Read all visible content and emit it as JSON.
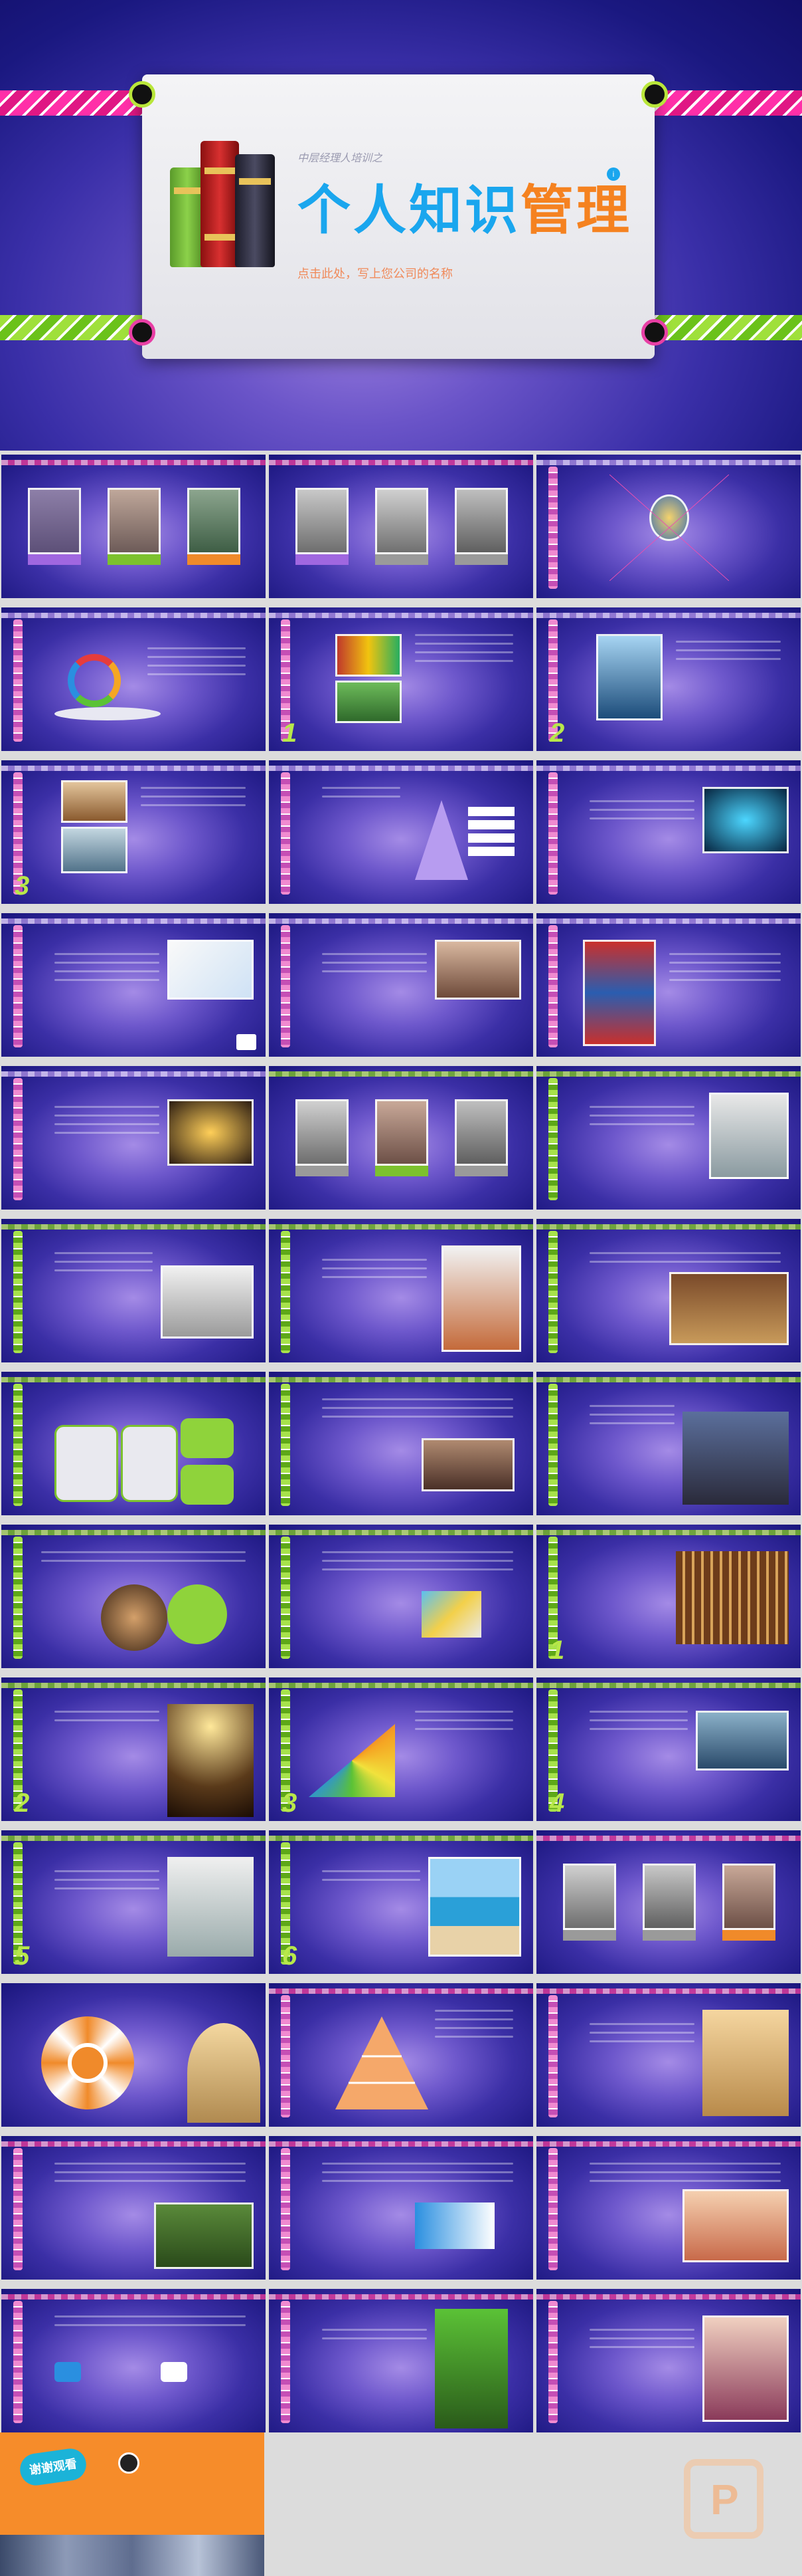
{
  "hero": {
    "subtitle": "中层经理人培训之",
    "title_part1": "个人知识",
    "title_part2": "管理",
    "caption": "点击此处，写上您公司的名称",
    "badge": "i"
  },
  "grid": {
    "slide_count": 36,
    "section_numbers": [
      "1",
      "2",
      "3",
      "1",
      "2",
      "3",
      "4",
      "5",
      "6"
    ]
  },
  "thanks": {
    "label": "谢谢观看"
  },
  "colors": {
    "accent_blue": "#1aa6ee",
    "accent_orange": "#f58220",
    "pink_band": "#e83fa5",
    "green_band": "#9fe03b",
    "slide_bg": "#3b2fa6"
  }
}
